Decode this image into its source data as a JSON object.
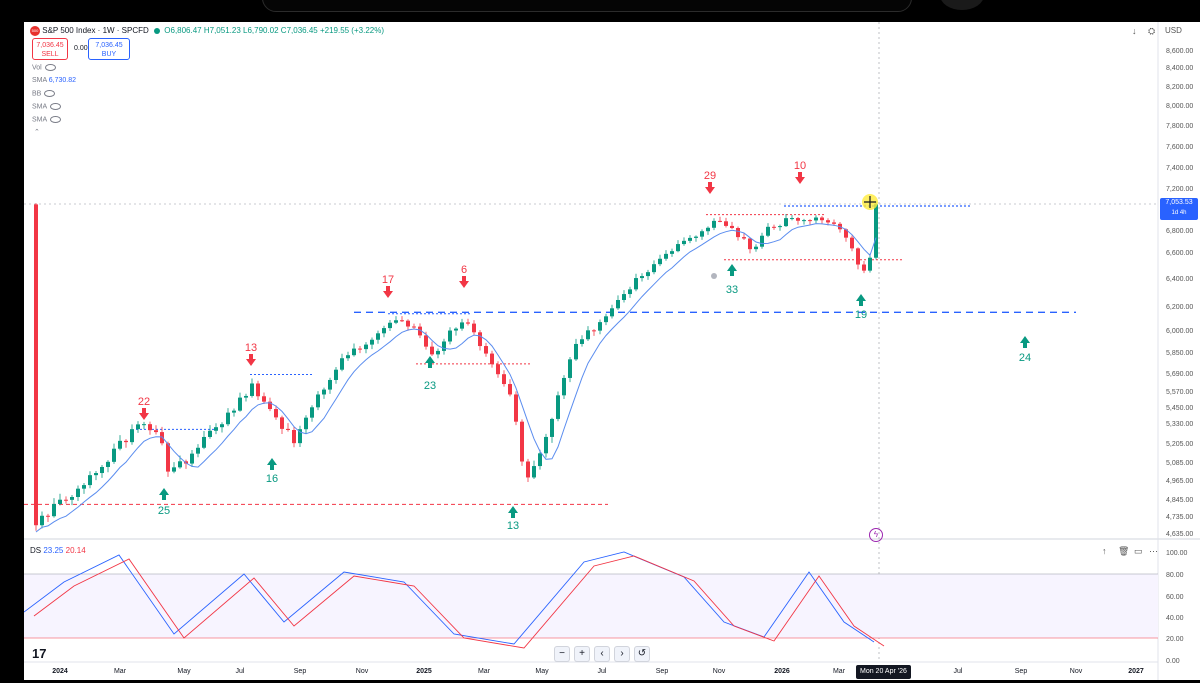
{
  "header": {
    "title": "S&P 500 Index · 1W · SPCFD",
    "ohlc": "O6,806.47 H7,051.23 L6,790.02 C7,036.45 +219.55 (+3.22%)",
    "symbol_badge": "500"
  },
  "trade": {
    "sell_price": "7,036.45",
    "sell_label": "SELL",
    "spread": "0.00",
    "buy_price": "7,036.45",
    "buy_label": "BUY"
  },
  "indicators": [
    {
      "name": "Vol",
      "value": ""
    },
    {
      "name": "SMA",
      "value": "6,730.82"
    },
    {
      "name": "BB",
      "value": ""
    },
    {
      "name": "SMA",
      "value": ""
    },
    {
      "name": "SMA",
      "value": ""
    }
  ],
  "currency": "USD",
  "current_price": {
    "value": "7,053.53",
    "timeframe": "1d 4h"
  },
  "oscillator": {
    "name": "DS",
    "value1": "23.25",
    "value2": "20.14"
  },
  "crosshair_date": "Mon 20 Apr '26",
  "colors": {
    "up": "#089981",
    "down": "#f23645",
    "blue": "#2962ff",
    "sma": "#5b8def"
  },
  "chart_data": {
    "type": "candlestick",
    "y_ticks": [
      "8,600.00",
      "8,400.00",
      "8,200.00",
      "8,000.00",
      "7,800.00",
      "7,600.00",
      "7,400.00",
      "7,200.00",
      "7,000.00",
      "6,800.00",
      "6,600.00",
      "6,400.00",
      "6,200.00",
      "6,000.00",
      "5,850.00",
      "5,690.00",
      "5,570.00",
      "5,450.00",
      "5,330.00",
      "5,205.00",
      "5,085.00",
      "4,965.00",
      "4,845.00",
      "4,735.00",
      "4,635.00"
    ],
    "osc_ticks": [
      "100.00",
      "80.00",
      "60.00",
      "40.00",
      "20.00",
      "0.00"
    ],
    "x_ticks": [
      "2024",
      "Mar",
      "May",
      "Jul",
      "Sep",
      "Nov",
      "2025",
      "Mar",
      "May",
      "Jul",
      "Sep",
      "Nov",
      "2026",
      "Mar",
      "Jul",
      "Sep",
      "Nov",
      "2027"
    ],
    "last_close": 7036.45,
    "sma_value": 6730.82,
    "horizontal_levels": [
      {
        "price": 6147,
        "style": "dashed",
        "color": "blue"
      },
      {
        "price": 4810,
        "style": "dashed",
        "color": "red"
      },
      {
        "price": 6540,
        "style": "dotted",
        "color": "red"
      },
      {
        "price": 6940,
        "style": "dotted",
        "color": "red"
      },
      {
        "price": 7020,
        "style": "dotted",
        "color": "blue"
      },
      {
        "price": 5760,
        "style": "dotted",
        "color": "red"
      },
      {
        "price": 5680,
        "style": "dotted",
        "color": "blue"
      },
      {
        "price": 5290,
        "style": "dotted",
        "color": "blue"
      },
      {
        "price": 6135,
        "style": "dotted",
        "color": "blue"
      }
    ],
    "annotations": [
      {
        "label": "22",
        "kind": "down"
      },
      {
        "label": "25",
        "kind": "up"
      },
      {
        "label": "13",
        "kind": "down"
      },
      {
        "label": "16",
        "kind": "up"
      },
      {
        "label": "17",
        "kind": "down"
      },
      {
        "label": "6",
        "kind": "down"
      },
      {
        "label": "23",
        "kind": "up"
      },
      {
        "label": "13",
        "kind": "up"
      },
      {
        "label": "29",
        "kind": "down"
      },
      {
        "label": "10",
        "kind": "down"
      },
      {
        "label": "33",
        "kind": "up"
      },
      {
        "label": "19",
        "kind": "up"
      },
      {
        "label": "24",
        "kind": "up"
      }
    ]
  },
  "nav": {
    "zoom_out": "−",
    "zoom_in": "+",
    "back": "‹",
    "forward": "›",
    "reset": "↺"
  }
}
